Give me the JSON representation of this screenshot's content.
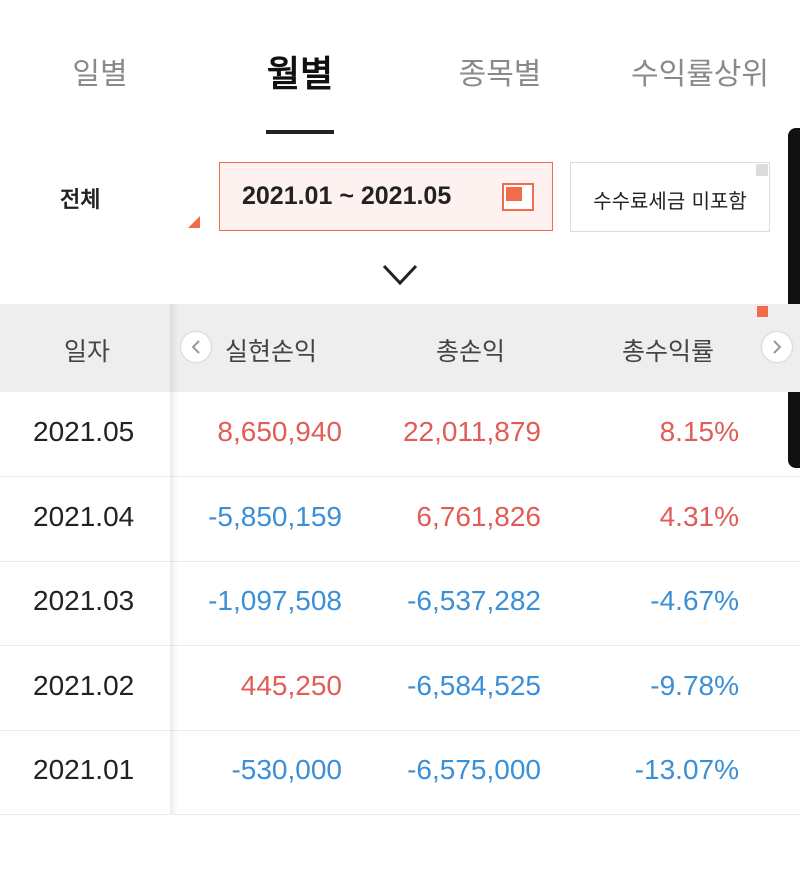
{
  "tabs": [
    {
      "label": "일별",
      "active": false
    },
    {
      "label": "월별",
      "active": true
    },
    {
      "label": "종목별",
      "active": false
    },
    {
      "label": "수익률상위",
      "active": false
    }
  ],
  "filter": {
    "account_label": "전체",
    "date_range": "2021.01 ~ 2021.05",
    "fee_button_label": "수수료세금 미포함"
  },
  "table": {
    "headers": [
      "일자",
      "실현손익",
      "총손익",
      "총수익률"
    ],
    "rows": [
      {
        "date": "2021.05",
        "realized": "8,650,940",
        "total": "22,011,879",
        "rate": "8.15%"
      },
      {
        "date": "2021.04",
        "realized": "-5,850,159",
        "total": "6,761,826",
        "rate": "4.31%"
      },
      {
        "date": "2021.03",
        "realized": "-1,097,508",
        "total": "-6,537,282",
        "rate": "-4.67%"
      },
      {
        "date": "2021.02",
        "realized": "445,250",
        "total": "-6,584,525",
        "rate": "-9.78%"
      },
      {
        "date": "2021.01",
        "realized": "-530,000",
        "total": "-6,575,000",
        "rate": "-13.07%"
      }
    ]
  },
  "colors": {
    "accent": "#f26b4a",
    "positive": "#e25c57",
    "negative": "#3b8fd6"
  },
  "icons": [
    "calendar-icon",
    "chevron-down-icon",
    "chevron-left-icon",
    "chevron-right-icon"
  ]
}
